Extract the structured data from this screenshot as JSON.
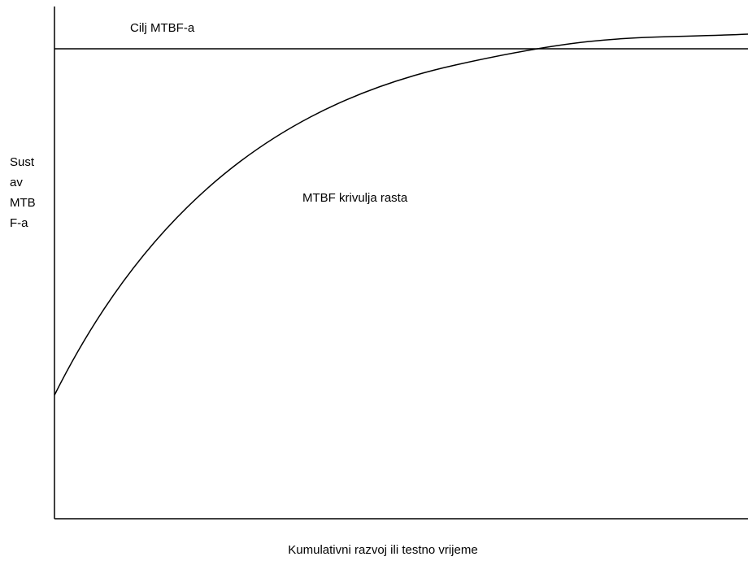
{
  "diagram": {
    "target_label": "Cilj MTBF-a",
    "curve_label": "MTBF krivulja rasta",
    "y_axis_label": [
      "Sust",
      "av",
      "MTB",
      "F-a"
    ],
    "x_axis_label": "Kumulativni razvoj ili testno vrijeme",
    "line_color": "#000000",
    "background_color": "#ffffff"
  }
}
